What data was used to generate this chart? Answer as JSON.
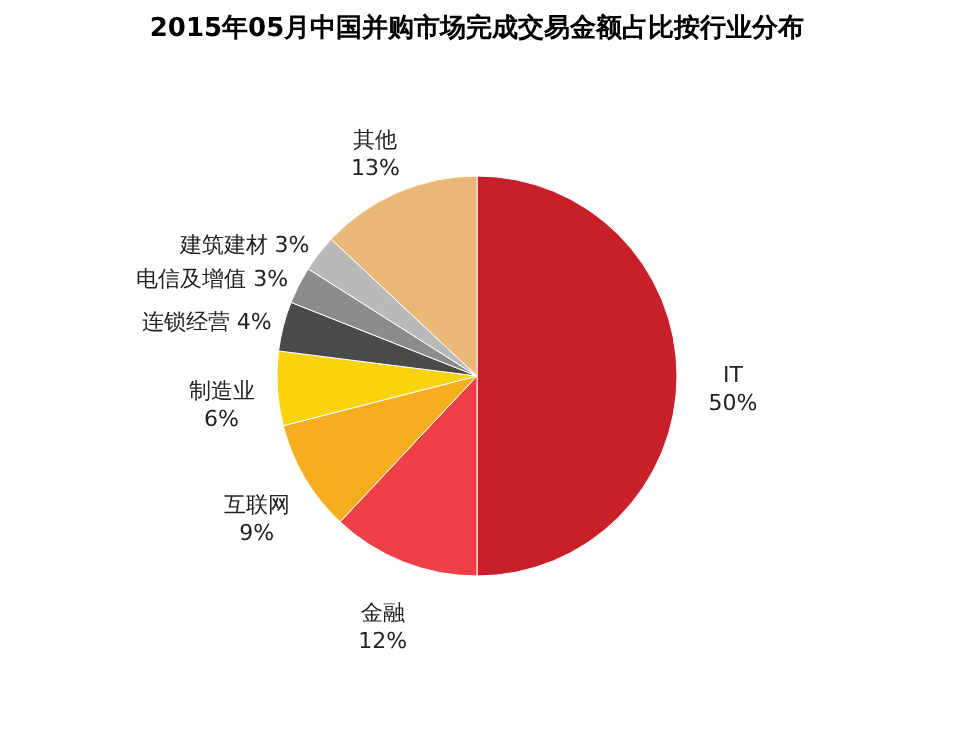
{
  "chart_data": {
    "type": "pie",
    "title": "2015年05月中国并购市场完成交易金额占比按行业分布",
    "categories": [
      "IT",
      "金融",
      "互联网",
      "制造业",
      "连锁经营",
      "电信及增值",
      "建筑建材",
      "其他"
    ],
    "values": [
      50,
      12,
      9,
      6,
      4,
      3,
      3,
      13
    ],
    "colors": [
      "#c8202a",
      "#ef3f47",
      "#f6ae1e",
      "#f9d30b",
      "#4a4a4a",
      "#8c8c8c",
      "#b9b9b9",
      "#e9b877"
    ],
    "value_labels": [
      "50%",
      "12%",
      "9%",
      "6%",
      "4%",
      "3%",
      "3%",
      "13%"
    ]
  }
}
